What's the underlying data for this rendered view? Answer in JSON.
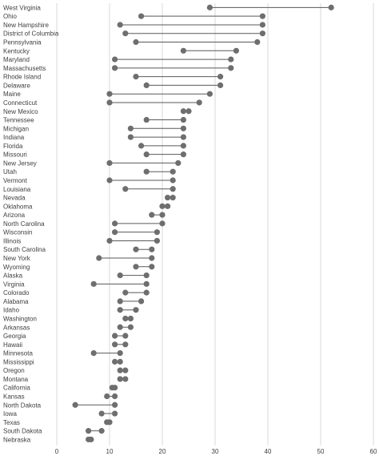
{
  "chart_data": {
    "type": "dumbbell",
    "title": "",
    "xlabel": "",
    "ylabel": "",
    "xlim": [
      0,
      60
    ],
    "xticks": [
      0,
      10,
      20,
      30,
      40,
      50,
      60
    ],
    "grid": true,
    "colors": {
      "dot": "#6e6e6e",
      "connector": "#595959",
      "grid": "#d9d9d9",
      "text": "#404040"
    },
    "rows": [
      {
        "state": "West Virginia",
        "low": 29,
        "high": 52
      },
      {
        "state": "Ohio",
        "low": 16,
        "high": 39
      },
      {
        "state": "New Hampshire",
        "low": 12,
        "high": 39
      },
      {
        "state": "District of Columbia",
        "low": 13,
        "high": 39
      },
      {
        "state": "Pennsylvania",
        "low": 15,
        "high": 38
      },
      {
        "state": "Kentucky",
        "low": 24,
        "high": 34
      },
      {
        "state": "Maryland",
        "low": 11,
        "high": 33
      },
      {
        "state": "Massachusetts",
        "low": 11,
        "high": 33
      },
      {
        "state": "Rhode Island",
        "low": 15,
        "high": 31
      },
      {
        "state": "Delaware",
        "low": 17,
        "high": 31
      },
      {
        "state": "Maine",
        "low": 10,
        "high": 29
      },
      {
        "state": "Connecticut",
        "low": 10,
        "high": 27
      },
      {
        "state": "New Mexico",
        "low": 24,
        "high": 25
      },
      {
        "state": "Tennessee",
        "low": 17,
        "high": 24
      },
      {
        "state": "Michigan",
        "low": 14,
        "high": 24
      },
      {
        "state": "Indiana",
        "low": 14,
        "high": 24
      },
      {
        "state": "Florida",
        "low": 16,
        "high": 24
      },
      {
        "state": "Missouri",
        "low": 17,
        "high": 24
      },
      {
        "state": "New Jersey",
        "low": 10,
        "high": 23
      },
      {
        "state": "Utah",
        "low": 17,
        "high": 22
      },
      {
        "state": "Vermont",
        "low": 10,
        "high": 22
      },
      {
        "state": "Louisiana",
        "low": 13,
        "high": 22
      },
      {
        "state": "Nevada",
        "low": 21,
        "high": 22
      },
      {
        "state": "Oklahoma",
        "low": 20,
        "high": 21
      },
      {
        "state": "Arizona",
        "low": 18,
        "high": 20
      },
      {
        "state": "North Carolina",
        "low": 11,
        "high": 20
      },
      {
        "state": "Wisconsin",
        "low": 11,
        "high": 19
      },
      {
        "state": "Illinois",
        "low": 10,
        "high": 19
      },
      {
        "state": "South Carolina",
        "low": 15,
        "high": 18
      },
      {
        "state": "New York",
        "low": 8,
        "high": 18
      },
      {
        "state": "Wyoming",
        "low": 15,
        "high": 18
      },
      {
        "state": "Alaska",
        "low": 12,
        "high": 17
      },
      {
        "state": "Virginia",
        "low": 7,
        "high": 17
      },
      {
        "state": "Colorado",
        "low": 13,
        "high": 17
      },
      {
        "state": "Alabama",
        "low": 12,
        "high": 16
      },
      {
        "state": "Idaho",
        "low": 12,
        "high": 15
      },
      {
        "state": "Washington",
        "low": 13,
        "high": 14
      },
      {
        "state": "Arkansas",
        "low": 12,
        "high": 14
      },
      {
        "state": "Georgia",
        "low": 11,
        "high": 13
      },
      {
        "state": "Hawaii",
        "low": 11,
        "high": 13
      },
      {
        "state": "Minnesota",
        "low": 7,
        "high": 12
      },
      {
        "state": "Mississippi",
        "low": 11,
        "high": 12
      },
      {
        "state": "Oregon",
        "low": 12,
        "high": 13
      },
      {
        "state": "Montana",
        "low": 12,
        "high": 13
      },
      {
        "state": "California",
        "low": 10.5,
        "high": 11
      },
      {
        "state": "Kansas",
        "low": 9.5,
        "high": 11
      },
      {
        "state": "North Dakota",
        "low": 3.5,
        "high": 11
      },
      {
        "state": "Iowa",
        "low": 8.5,
        "high": 11
      },
      {
        "state": "Texas",
        "low": 9.5,
        "high": 10
      },
      {
        "state": "South Dakota",
        "low": 6,
        "high": 8.5
      },
      {
        "state": "Nebraska",
        "low": 6,
        "high": 6.5
      }
    ]
  }
}
